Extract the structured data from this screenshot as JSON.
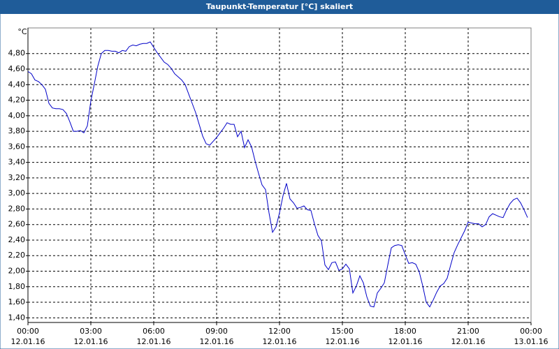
{
  "chart_data": {
    "type": "line",
    "title": "Taupunkt-Temperatur [°C] skaliert",
    "y_unit": "°C",
    "x": [
      0,
      10,
      20,
      30,
      40,
      50,
      60,
      70,
      80,
      90,
      100,
      110,
      120,
      130,
      140,
      150,
      160,
      170,
      180,
      190,
      200,
      210,
      220,
      230,
      240,
      250,
      260,
      270,
      280,
      290,
      300,
      310,
      320,
      330,
      340,
      350,
      360,
      370,
      380,
      390,
      400,
      410,
      420,
      430,
      440,
      450,
      460,
      470,
      480,
      490,
      500,
      510,
      520,
      530,
      540,
      550,
      560,
      570,
      580,
      590,
      600,
      610,
      620,
      630,
      640,
      650,
      660,
      670,
      680,
      690,
      700,
      710,
      720,
      730,
      740,
      750,
      760,
      770,
      780,
      790,
      800,
      810,
      820,
      830,
      840,
      850,
      860,
      870,
      880,
      890,
      900,
      910,
      920,
      930,
      940,
      950,
      960,
      970,
      980,
      990,
      1000,
      1010,
      1020,
      1030,
      1040,
      1050,
      1060,
      1070,
      1080,
      1090,
      1100,
      1110,
      1120,
      1130,
      1140,
      1150,
      1160,
      1170,
      1180,
      1190,
      1200,
      1210,
      1220,
      1230,
      1240,
      1250,
      1260,
      1270,
      1280,
      1290,
      1300,
      1310,
      1320,
      1330,
      1340,
      1350,
      1360,
      1370,
      1380,
      1390,
      1400,
      1410,
      1420,
      1430
    ],
    "series": [
      {
        "color": "#0000c8",
        "values": [
          4.57,
          4.54,
          4.46,
          4.44,
          4.4,
          4.34,
          4.16,
          4.1,
          4.09,
          4.09,
          4.08,
          4.03,
          3.92,
          3.8,
          3.8,
          3.81,
          3.78,
          3.87,
          4.19,
          4.41,
          4.64,
          4.8,
          4.84,
          4.84,
          4.83,
          4.83,
          4.81,
          4.84,
          4.83,
          4.89,
          4.91,
          4.9,
          4.92,
          4.93,
          4.93,
          4.95,
          4.88,
          4.81,
          4.75,
          4.69,
          4.66,
          4.61,
          4.54,
          4.5,
          4.46,
          4.4,
          4.28,
          4.16,
          4.04,
          3.89,
          3.74,
          3.64,
          3.62,
          3.67,
          3.72,
          3.78,
          3.84,
          3.91,
          3.89,
          3.89,
          3.73,
          3.8,
          3.59,
          3.69,
          3.6,
          3.42,
          3.26,
          3.11,
          3.05,
          2.75,
          2.5,
          2.57,
          2.75,
          2.97,
          3.13,
          2.93,
          2.88,
          2.81,
          2.82,
          2.84,
          2.79,
          2.78,
          2.61,
          2.46,
          2.39,
          2.08,
          2.02,
          2.11,
          2.12,
          2.01,
          2.03,
          2.09,
          2.03,
          1.72,
          1.81,
          1.94,
          1.85,
          1.67,
          1.55,
          1.54,
          1.72,
          1.78,
          1.85,
          2.08,
          2.3,
          2.33,
          2.34,
          2.33,
          2.21,
          2.1,
          2.11,
          2.09,
          1.99,
          1.81,
          1.6,
          1.54,
          1.63,
          1.73,
          1.81,
          1.84,
          1.91,
          2.08,
          2.24,
          2.34,
          2.43,
          2.52,
          2.63,
          2.62,
          2.61,
          2.61,
          2.57,
          2.6,
          2.7,
          2.74,
          2.72,
          2.7,
          2.69,
          2.79,
          2.87,
          2.92,
          2.94,
          2.88,
          2.79,
          2.69
        ]
      }
    ],
    "xlim": [
      0,
      1440
    ],
    "xticks": [
      {
        "value": 0,
        "label": "00:00"
      },
      {
        "value": 180,
        "label": "03:00"
      },
      {
        "value": 360,
        "label": "06:00"
      },
      {
        "value": 540,
        "label": "09:00"
      },
      {
        "value": 720,
        "label": "12:00"
      },
      {
        "value": 900,
        "label": "15:00"
      },
      {
        "value": 1080,
        "label": "18:00"
      },
      {
        "value": 1260,
        "label": "21:00"
      },
      {
        "value": 1440,
        "label": "00:00"
      }
    ],
    "xtick_dates": [
      "12.01.16",
      "12.01.16",
      "12.01.16",
      "12.01.16",
      "12.01.16",
      "12.01.16",
      "12.01.16",
      "12.01.16",
      "13.01.16"
    ],
    "ylim": [
      1.34,
      5.13
    ],
    "yticks": [
      {
        "value": 1.4,
        "label": "1,40"
      },
      {
        "value": 1.6,
        "label": "1,60"
      },
      {
        "value": 1.8,
        "label": "1,80"
      },
      {
        "value": 2.0,
        "label": "2,00"
      },
      {
        "value": 2.2,
        "label": "2,20"
      },
      {
        "value": 2.4,
        "label": "2,40"
      },
      {
        "value": 2.6,
        "label": "2,60"
      },
      {
        "value": 2.8,
        "label": "2,80"
      },
      {
        "value": 3.0,
        "label": "3,00"
      },
      {
        "value": 3.2,
        "label": "3,20"
      },
      {
        "value": 3.4,
        "label": "3,40"
      },
      {
        "value": 3.6,
        "label": "3,60"
      },
      {
        "value": 3.8,
        "label": "3,80"
      },
      {
        "value": 4.0,
        "label": "4,00"
      },
      {
        "value": 4.2,
        "label": "4,20"
      },
      {
        "value": 4.4,
        "label": "4,40"
      },
      {
        "value": 4.6,
        "label": "4,60"
      },
      {
        "value": 4.8,
        "label": "4,80"
      }
    ],
    "grid": true
  }
}
